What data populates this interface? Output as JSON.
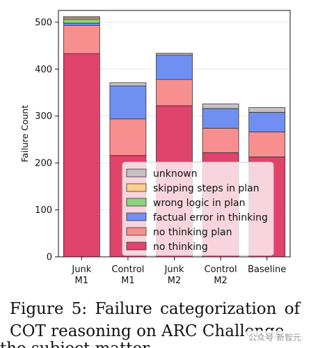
{
  "chart_data": {
    "type": "bar",
    "stacked": true,
    "ylabel": "Failure Count",
    "xlabel": "",
    "ylim": [
      0,
      525
    ],
    "yticks": [
      0,
      100,
      200,
      300,
      400,
      500
    ],
    "grid": true,
    "legend_position": "lower-right",
    "categories": [
      [
        "Junk",
        "M1"
      ],
      [
        "Control",
        "M1"
      ],
      [
        "Junk",
        "M2"
      ],
      [
        "Control",
        "M2"
      ],
      [
        "Baseline"
      ]
    ],
    "series": [
      {
        "name": "no thinking",
        "color": "#e0436b",
        "values": [
          433,
          216,
          322,
          222,
          213
        ]
      },
      {
        "name": "no thinking plan",
        "color": "#f88f8f",
        "values": [
          60,
          78,
          56,
          52,
          53
        ]
      },
      {
        "name": "factual error in thinking",
        "color": "#6f8ff2",
        "values": [
          5,
          70,
          52,
          42,
          42
        ]
      },
      {
        "name": "wrong logic in plan",
        "color": "#8fd27a",
        "values": [
          8,
          0,
          0,
          0,
          0
        ]
      },
      {
        "name": "skipping steps in plan",
        "color": "#fdd08c",
        "values": [
          3,
          0,
          0,
          0,
          0
        ]
      },
      {
        "name": "unknown",
        "color": "#c9c0c2",
        "values": [
          3,
          7,
          4,
          10,
          10
        ]
      }
    ],
    "legend_order": [
      "unknown",
      "skipping steps in plan",
      "wrong logic in plan",
      "factual error in thinking",
      "no thinking plan",
      "no thinking"
    ]
  },
  "caption": {
    "line1": "Figure 5:  Failure categorization of",
    "line2": "COT reasoning on ARC Challenge",
    "line3": "the subject matter"
  },
  "watermark": "公众号·新智元"
}
